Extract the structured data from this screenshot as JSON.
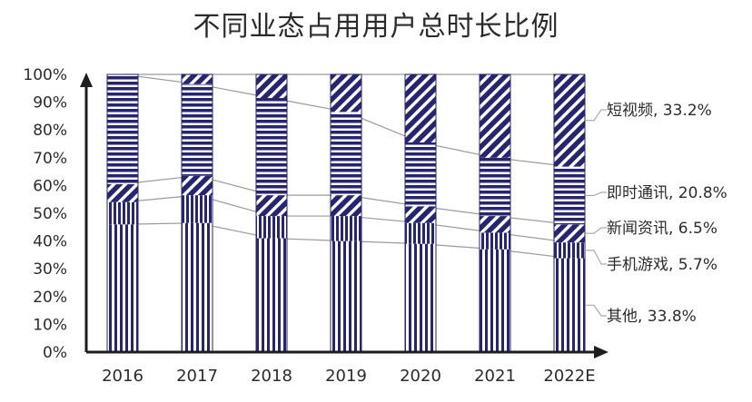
{
  "chart_data": {
    "type": "bar",
    "stacked": true,
    "percent": true,
    "title": "不同业态占用用户总时长比例",
    "xlabel": "",
    "ylabel": "",
    "ylim": [
      0,
      100
    ],
    "yticks": [
      "0%",
      "10%",
      "20%",
      "30%",
      "40%",
      "50%",
      "60%",
      "70%",
      "80%",
      "90%",
      "100%"
    ],
    "categories": [
      "2016",
      "2017",
      "2018",
      "2019",
      "2020",
      "2021",
      "2022E"
    ],
    "series": [
      {
        "name": "其他",
        "pattern": "vertical-stripes",
        "values": [
          46.0,
          46.5,
          41.0,
          40.0,
          39.0,
          37.0,
          33.8
        ]
      },
      {
        "name": "手机游戏",
        "pattern": "vertical-stripes-dense",
        "values": [
          8.0,
          10.0,
          8.0,
          9.0,
          7.5,
          6.0,
          5.7
        ]
      },
      {
        "name": "新闻资讯",
        "pattern": "diagonal-stripes",
        "values": [
          6.5,
          7.0,
          7.5,
          7.5,
          6.0,
          6.0,
          6.5
        ]
      },
      {
        "name": "即时通讯",
        "pattern": "horizontal-stripes",
        "values": [
          39.5,
          33.0,
          35.0,
          30.0,
          23.0,
          21.0,
          20.8
        ]
      },
      {
        "name": "短视频",
        "pattern": "diagonal-stripes",
        "values": [
          0.0,
          3.5,
          8.5,
          13.5,
          24.5,
          30.0,
          33.2
        ]
      }
    ],
    "legend": [
      {
        "label": "短视频, 33.2%"
      },
      {
        "label": "即时通讯, 20.8%"
      },
      {
        "label": "新闻资讯, 6.5%"
      },
      {
        "label": "手机游戏, 5.7%"
      },
      {
        "label": "其他, 33.8%"
      }
    ],
    "grid": false,
    "legend_placement": "right",
    "colors": {
      "bar": "#27256e",
      "connector": "#9a9a9a",
      "axis": "#1e1e1e"
    }
  }
}
